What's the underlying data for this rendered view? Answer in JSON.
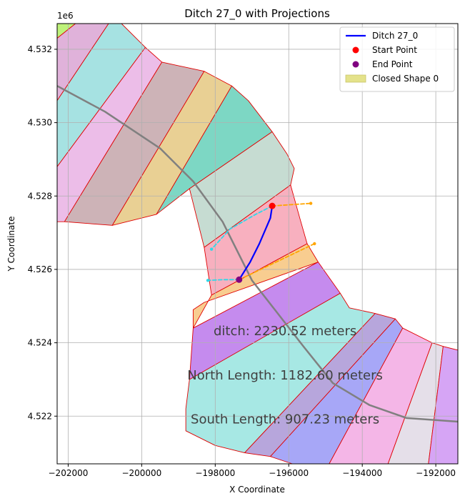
{
  "chart_data": {
    "type": "line",
    "title": "Ditch 27_0 with Projections",
    "xlabel": "X Coordinate",
    "ylabel": "Y Coordinate",
    "y_offset_label": "1e6",
    "xlim": [
      -202300,
      -191400
    ],
    "ylim": [
      4520700,
      4532700
    ],
    "grid": true,
    "xticks": [
      {
        "value": -202000,
        "label": "−202000"
      },
      {
        "value": -200000,
        "label": "−200000"
      },
      {
        "value": -198000,
        "label": "−198000"
      },
      {
        "value": -196000,
        "label": "−196000"
      },
      {
        "value": -194000,
        "label": "−194000"
      },
      {
        "value": -192000,
        "label": "−192000"
      }
    ],
    "yticks": [
      {
        "value": 4522000,
        "label": "4.522"
      },
      {
        "value": 4524000,
        "label": "4.524"
      },
      {
        "value": 4526000,
        "label": "4.526"
      },
      {
        "value": 4528000,
        "label": "4.528"
      },
      {
        "value": 4530000,
        "label": "4.530"
      },
      {
        "value": 4532000,
        "label": "4.532"
      }
    ],
    "legend": {
      "position": "top-right",
      "entries": [
        {
          "label": "Ditch 27_0",
          "kind": "line",
          "color": "#0000ff"
        },
        {
          "label": "Start Point",
          "kind": "dot",
          "color": "#ff0000"
        },
        {
          "label": "End Point",
          "kind": "dot",
          "color": "#800080"
        },
        {
          "label": "Closed Shape 0",
          "kind": "patch",
          "color": "#e4e28a"
        }
      ]
    },
    "annotations": [
      {
        "text": "ditch: 2230.52 meters",
        "x": -196100,
        "y": 4524300
      },
      {
        "text": "North Length: 1182.60 meters",
        "x": -196100,
        "y": 4523100
      },
      {
        "text": "South Length: 907.23 meters",
        "x": -196100,
        "y": 4521900
      }
    ],
    "segments": [
      {
        "color": "#bef27a",
        "points": [
          [
            -202300,
            4532700
          ],
          [
            -201800,
            4532700
          ],
          [
            -202300,
            4532300
          ]
        ]
      },
      {
        "color": "#e0b2da",
        "points": [
          [
            -202300,
            4532300
          ],
          [
            -201800,
            4532700
          ],
          [
            -200900,
            4532700
          ],
          [
            -202300,
            4530600
          ]
        ]
      },
      {
        "color": "#a6e2e2",
        "points": [
          [
            -202300,
            4530600
          ],
          [
            -200900,
            4532700
          ],
          [
            -200550,
            4532700
          ],
          [
            -199900,
            4532050
          ],
          [
            -202300,
            4528800
          ]
        ]
      },
      {
        "color": "#ecbde8",
        "points": [
          [
            -202300,
            4528800
          ],
          [
            -199900,
            4532050
          ],
          [
            -199450,
            4531650
          ],
          [
            -202100,
            4527300
          ],
          [
            -202300,
            4527300
          ]
        ]
      },
      {
        "color": "#cdb3b7",
        "points": [
          [
            -202100,
            4527300
          ],
          [
            -199450,
            4531650
          ],
          [
            -198300,
            4531400
          ],
          [
            -200800,
            4527200
          ]
        ]
      },
      {
        "color": "#e9d094",
        "points": [
          [
            -200800,
            4527200
          ],
          [
            -198300,
            4531400
          ],
          [
            -197550,
            4531000
          ],
          [
            -199600,
            4527500
          ]
        ]
      },
      {
        "color": "#7dd7c4",
        "points": [
          [
            -199600,
            4527500
          ],
          [
            -197550,
            4531000
          ],
          [
            -197100,
            4530600
          ],
          [
            -196450,
            4529750
          ],
          [
            -198700,
            4528200
          ]
        ]
      },
      {
        "color": "#c6dcd2",
        "points": [
          [
            -198700,
            4528200
          ],
          [
            -196450,
            4529750
          ],
          [
            -196050,
            4529150
          ],
          [
            -195850,
            4528750
          ],
          [
            -195950,
            4528300
          ],
          [
            -198300,
            4526600
          ]
        ]
      },
      {
        "color": "#f8b0bf",
        "points": [
          [
            -198300,
            4526600
          ],
          [
            -195950,
            4528300
          ],
          [
            -195700,
            4527400
          ],
          [
            -195500,
            4526700
          ],
          [
            -198100,
            4525300
          ]
        ]
      },
      {
        "color": "#f8cd90",
        "points": [
          [
            -198100,
            4525300
          ],
          [
            -195500,
            4526700
          ],
          [
            -195200,
            4526200
          ],
          [
            -198300,
            4525100
          ],
          [
            -198600,
            4524900
          ],
          [
            -198600,
            4524400
          ]
        ]
      },
      {
        "color": "#c58bee",
        "points": [
          [
            -198600,
            4524400
          ],
          [
            -195200,
            4526200
          ],
          [
            -194600,
            4525350
          ],
          [
            -198600,
            4522800
          ],
          [
            -198700,
            4523000
          ]
        ]
      },
      {
        "color": "#a7e8e4",
        "points": [
          [
            -198700,
            4523000
          ],
          [
            -194600,
            4525350
          ],
          [
            -194350,
            4524950
          ],
          [
            -193650,
            4524800
          ],
          [
            -197200,
            4521000
          ],
          [
            -198000,
            4521200
          ],
          [
            -198800,
            4521600
          ],
          [
            -198800,
            4522200
          ]
        ]
      },
      {
        "color": "#b7a6dc",
        "points": [
          [
            -197200,
            4521000
          ],
          [
            -193650,
            4524800
          ],
          [
            -193100,
            4524650
          ],
          [
            -196500,
            4520900
          ]
        ]
      },
      {
        "color": "#a7a7f7",
        "points": [
          [
            -196500,
            4520900
          ],
          [
            -193100,
            4524650
          ],
          [
            -192900,
            4524400
          ],
          [
            -194900,
            4520700
          ],
          [
            -195900,
            4520700
          ]
        ]
      },
      {
        "color": "#f4b6e7",
        "points": [
          [
            -194900,
            4520700
          ],
          [
            -192900,
            4524400
          ],
          [
            -192100,
            4524000
          ],
          [
            -193300,
            4520700
          ]
        ]
      },
      {
        "color": "#e5dfe9",
        "points": [
          [
            -193300,
            4520700
          ],
          [
            -192100,
            4524000
          ],
          [
            -191800,
            4523900
          ],
          [
            -192200,
            4520700
          ]
        ]
      },
      {
        "color": "#d6a5f5",
        "points": [
          [
            -192200,
            4520700
          ],
          [
            -191800,
            4523900
          ],
          [
            -191400,
            4523800
          ],
          [
            -191400,
            4520700
          ]
        ]
      }
    ],
    "series": [
      {
        "name": "centerline",
        "color": "#808080",
        "style": "solid",
        "x": [
          -202300,
          -201000,
          -199500,
          -198600,
          -197800,
          -197000,
          -196300,
          -195600,
          -194800,
          -193800,
          -192800,
          -191400
        ],
        "y": [
          4531000,
          4530300,
          4529300,
          4528400,
          4527300,
          4525700,
          4524800,
          4523900,
          4522900,
          4522300,
          4521950,
          4521850
        ]
      },
      {
        "name": "Ditch 27_0",
        "color": "#0000ff",
        "style": "solid",
        "x": [
          -196450,
          -196500,
          -196800,
          -197050,
          -197350
        ],
        "y": [
          4527730,
          4527400,
          4526700,
          4526200,
          4525720
        ]
      },
      {
        "name": "north projection",
        "color": "#2fd8e8",
        "style": "dashed",
        "x": [
          -196450,
          -196900,
          -197600,
          -198100
        ],
        "y": [
          4527730,
          4527500,
          4527100,
          4526550
        ]
      },
      {
        "name": "south projection",
        "color": "#2fd8e8",
        "style": "dashed",
        "x": [
          -197350,
          -197800,
          -198200
        ],
        "y": [
          4525720,
          4525720,
          4525700
        ]
      },
      {
        "name": "north extension",
        "color": "#ffa500",
        "style": "dashed",
        "x": [
          -196450,
          -195400
        ],
        "y": [
          4527730,
          4527800
        ]
      },
      {
        "name": "south extension",
        "color": "#ffa500",
        "style": "dashed",
        "x": [
          -197350,
          -195300
        ],
        "y": [
          4525720,
          4526700
        ]
      }
    ],
    "points": [
      {
        "name": "Start Point",
        "x": -196450,
        "y": 4527730,
        "color": "#ff0000"
      },
      {
        "name": "End Point",
        "x": -197350,
        "y": 4525720,
        "color": "#800080"
      }
    ]
  }
}
